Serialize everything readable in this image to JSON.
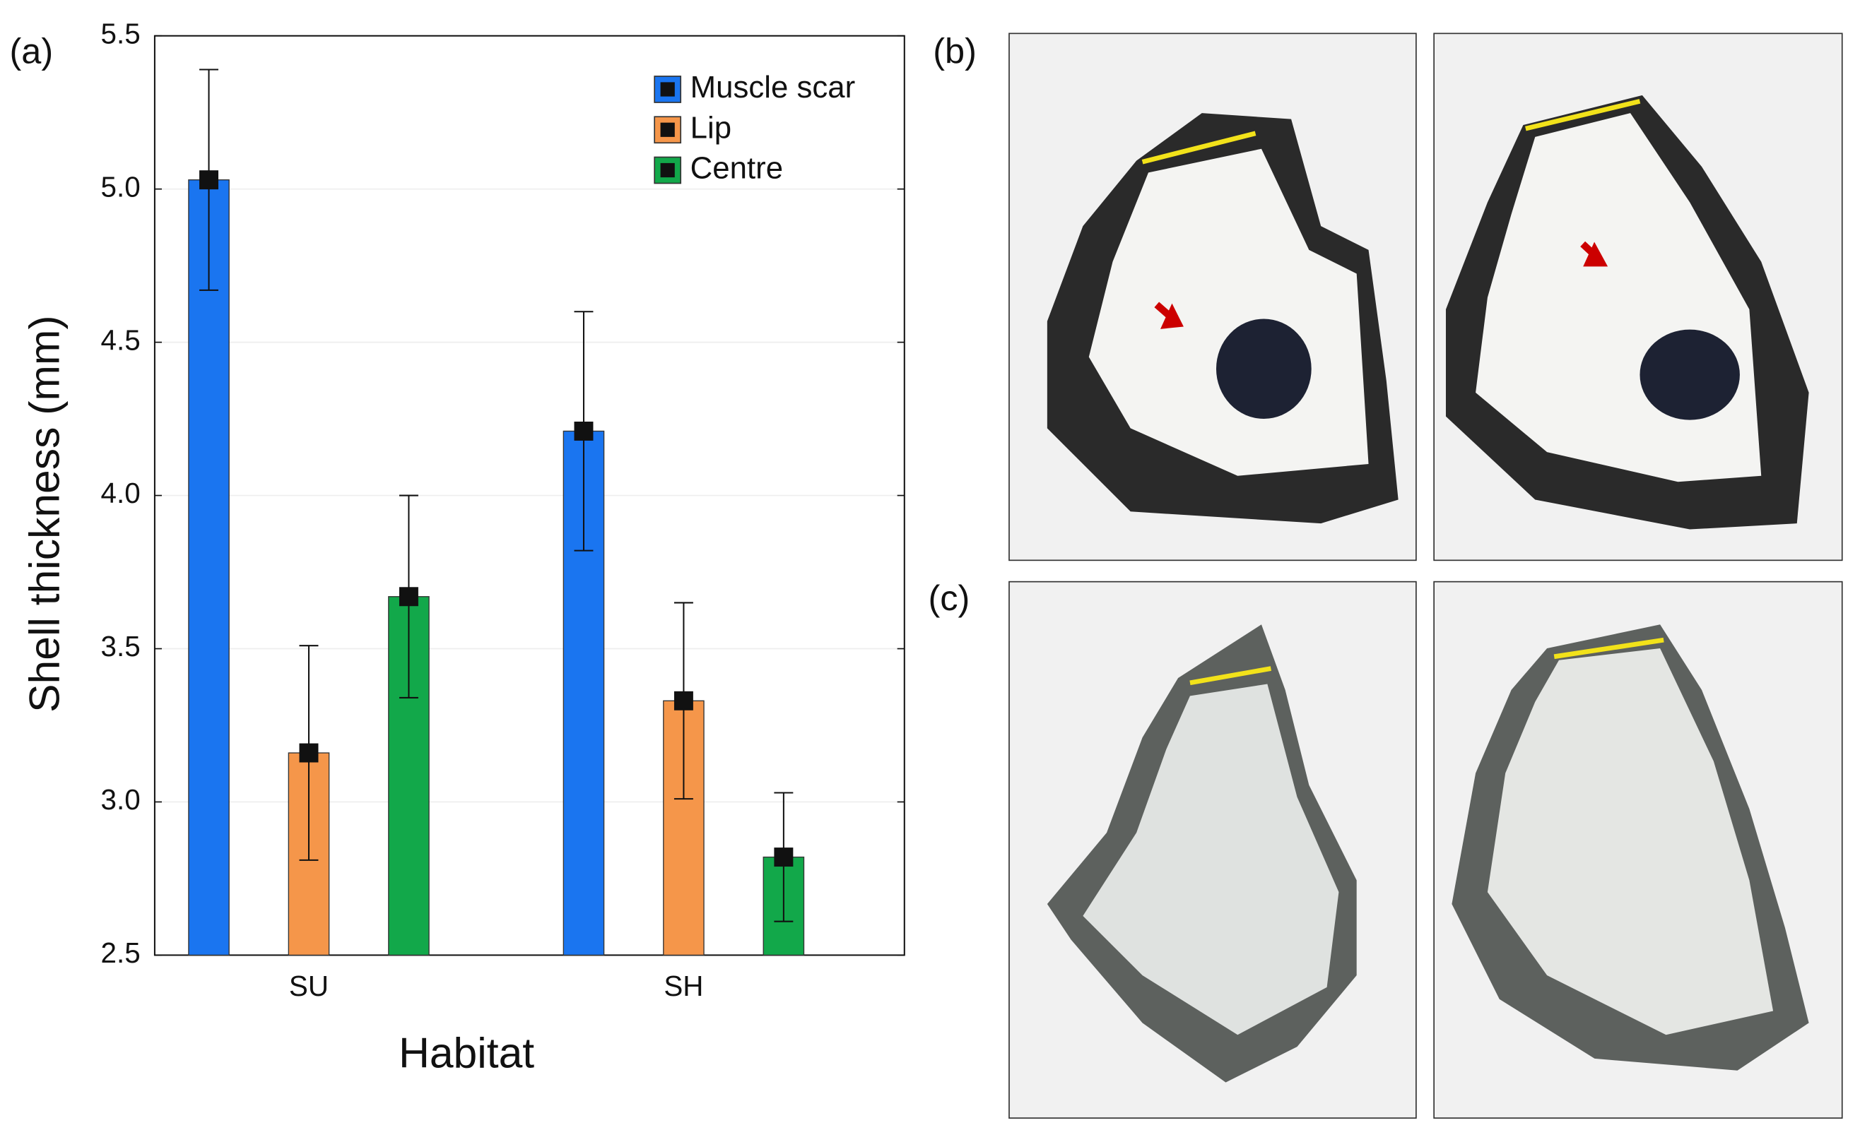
{
  "chart_data": {
    "type": "bar",
    "panel_label": "(a)",
    "ylabel": "Shell thickness (mm)",
    "xlabel": "Habitat",
    "categories": [
      "SU",
      "SH"
    ],
    "series": [
      {
        "name": "Muscle scar",
        "color": "#1a75f0",
        "values": [
          5.03,
          4.21
        ],
        "errors": [
          0.36,
          0.39
        ]
      },
      {
        "name": "Lip",
        "color": "#f5964a",
        "values": [
          3.16,
          3.33
        ],
        "errors": [
          0.35,
          0.32
        ]
      },
      {
        "name": "Centre",
        "color": "#12a84a",
        "values": [
          3.67,
          2.82
        ],
        "errors": [
          0.33,
          0.21
        ]
      }
    ],
    "ylim": [
      2.5,
      5.5
    ],
    "yticks": [
      2.5,
      {
        "value": 3,
        "label": "3.0"
      },
      3.5,
      {
        "value": 4,
        "label": "4.0"
      },
      4.5,
      {
        "value": 5,
        "label": "5.0"
      },
      5.5
    ],
    "grid": true,
    "legend": "upper right"
  },
  "panels": {
    "b": "(b)",
    "c": "(c)"
  }
}
